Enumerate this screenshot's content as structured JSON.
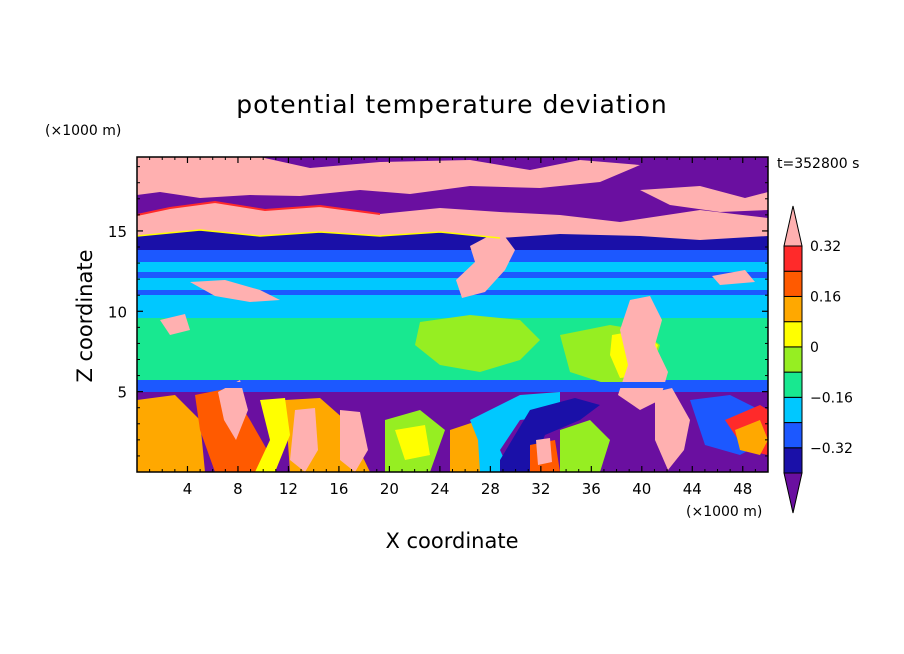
{
  "chart_data": {
    "type": "heatmap",
    "title": "potential temperature deviation",
    "xlabel": "X coordinate",
    "ylabel": "Z coordinate",
    "x_unit": "(×1000 m)",
    "y_unit": "(×1000 m)",
    "time_label": "t=352800 s",
    "xlim": [
      0,
      50
    ],
    "ylim": [
      0,
      19.6
    ],
    "x_ticks": [
      4,
      8,
      12,
      16,
      20,
      24,
      28,
      32,
      36,
      40,
      44,
      48
    ],
    "y_ticks": [
      5,
      10,
      15
    ],
    "colorbar": {
      "levels": [
        -0.4,
        -0.32,
        -0.24,
        -0.16,
        -0.08,
        0,
        0.08,
        0.16,
        0.24,
        0.32,
        0.4
      ],
      "labeled_ticks": [
        -0.32,
        -0.16,
        0,
        0.16,
        0.32
      ],
      "colors": [
        "#6a0fa0",
        "#1a10a8",
        "#1c58ff",
        "#00c8ff",
        "#18e890",
        "#96ee22",
        "#ffff00",
        "#ffa800",
        "#ff5a00",
        "#ff2a2a",
        "#ffb0b0"
      ],
      "extend": "both"
    },
    "layers": [
      {
        "z": [
          0,
          5.0
        ],
        "description_level": "mixed",
        "dominant_values": [
          -0.4,
          -0.32,
          0.24,
          0.32,
          0.4
        ]
      },
      {
        "z": [
          5.0,
          10.2
        ],
        "dominant_values": [
          -0.08,
          0,
          0.08,
          0.16
        ]
      },
      {
        "z": [
          10.2,
          14.2
        ],
        "dominant_values": [
          -0.24,
          -0.16,
          -0.08
        ]
      },
      {
        "z": [
          14.2,
          19.6
        ],
        "dominant_values": [
          -0.4,
          0.4
        ]
      }
    ]
  }
}
